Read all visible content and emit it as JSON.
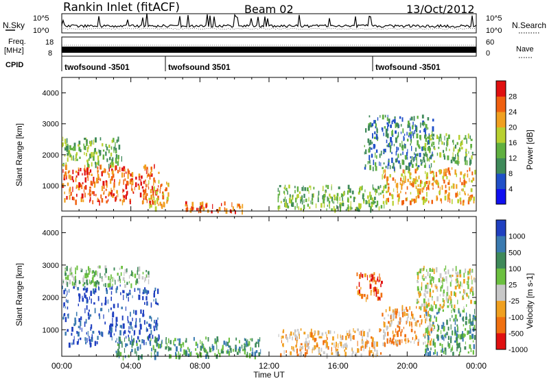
{
  "header": {
    "station": "Rankin Inlet (fitACF)",
    "beam": "Beam 02",
    "date": "13/Oct/2012"
  },
  "noise_panel": {
    "left_label": "N.Sky",
    "right_label": "N.Search",
    "left_ticks": [
      "10^5",
      "10^0"
    ],
    "right_ticks": [
      "10^5",
      "10^0"
    ]
  },
  "freq_panel": {
    "left_label_1": "Freq.",
    "left_label_2": "[MHz]",
    "right_label": "Nave",
    "left_ticks": [
      "18",
      "8"
    ],
    "right_ticks": [
      "60",
      "0"
    ]
  },
  "cpid_panel": {
    "label": "CPID",
    "segments": [
      {
        "start_hour": 0,
        "text": "twofsound -3501"
      },
      {
        "start_hour": 6,
        "text": "twofsound 3501"
      },
      {
        "start_hour": 18,
        "text": "twofsound -3501"
      }
    ]
  },
  "chart_data": [
    {
      "type": "heatmap",
      "name": "power",
      "ylabel": "Slant Range [km]",
      "xlabel": "",
      "x_range_hours": [
        0,
        24
      ],
      "ylim": [
        180,
        4500
      ],
      "yticks": [
        1000,
        2000,
        3000,
        4000
      ],
      "colorbar": {
        "label": "Power [dB]",
        "ticks": [
          "4",
          "8",
          "12",
          "16",
          "20",
          "24",
          "28"
        ],
        "colors": [
          "#1010f0",
          "#2050c8",
          "#3f8a5a",
          "#60b040",
          "#b8d030",
          "#f0a020",
          "#f06010",
          "#e01010"
        ]
      },
      "regions": [
        {
          "x": [
            0.0,
            5.6
          ],
          "y": [
            500,
            1700
          ],
          "level": 6
        },
        {
          "x": [
            0.0,
            3.5
          ],
          "y": [
            1700,
            2600
          ],
          "level": 3
        },
        {
          "x": [
            5.0,
            6.2
          ],
          "y": [
            300,
            1200
          ],
          "level": 5
        },
        {
          "x": [
            7.0,
            10.5
          ],
          "y": [
            200,
            500
          ],
          "level": 6
        },
        {
          "x": [
            12.5,
            18.8
          ],
          "y": [
            250,
            1050
          ],
          "level": 3
        },
        {
          "x": [
            18.5,
            23.9
          ],
          "y": [
            500,
            1600
          ],
          "level": 5
        },
        {
          "x": [
            17.5,
            21.5
          ],
          "y": [
            1600,
            3300
          ],
          "level": 2
        },
        {
          "x": [
            21.0,
            23.8
          ],
          "y": [
            1800,
            2700
          ],
          "level": 3
        }
      ]
    },
    {
      "type": "heatmap",
      "name": "velocity",
      "ylabel": "Slant Range [km]",
      "xlabel": "Time UT",
      "x_range_hours": [
        0,
        24
      ],
      "ylim": [
        180,
        4500
      ],
      "yticks": [
        1000,
        2000,
        3000,
        4000
      ],
      "xticks": [
        "00:00",
        "04:00",
        "08:00",
        "12:00",
        "16:00",
        "20:00",
        "00:00"
      ],
      "colorbar": {
        "label": "Velocity [m s-1]",
        "ticks": [
          "1000",
          "500",
          "100",
          "25",
          "-25",
          "-100",
          "-500",
          "-1000"
        ],
        "colors": [
          "#2040c0",
          "#3a7ab0",
          "#3f8a5a",
          "#6cc040",
          "#c8c8c8",
          "#f0a020",
          "#f07010",
          "#e01010"
        ]
      },
      "regions": [
        {
          "x": [
            0.0,
            5.6
          ],
          "y": [
            600,
            2400
          ],
          "level": 0
        },
        {
          "x": [
            0.0,
            5.0
          ],
          "y": [
            2400,
            3000
          ],
          "level": 3
        },
        {
          "x": [
            3.0,
            11.5
          ],
          "y": [
            200,
            800
          ],
          "level": 2
        },
        {
          "x": [
            12.5,
            18.5
          ],
          "y": [
            250,
            1050
          ],
          "level": 5
        },
        {
          "x": [
            18.5,
            21.5
          ],
          "y": [
            600,
            1800
          ],
          "level": 5
        },
        {
          "x": [
            17.0,
            18.5
          ],
          "y": [
            2000,
            2800
          ],
          "level": 6
        },
        {
          "x": [
            20.5,
            23.9
          ],
          "y": [
            1700,
            3000
          ],
          "level": 4
        },
        {
          "x": [
            21.0,
            23.9
          ],
          "y": [
            300,
            1700
          ],
          "level": 2
        }
      ]
    }
  ]
}
